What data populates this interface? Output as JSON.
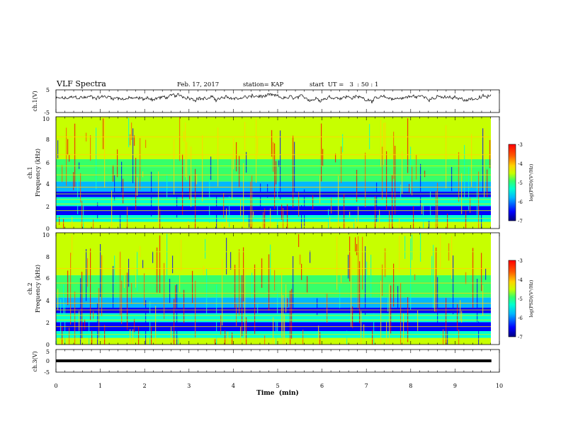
{
  "header": {
    "title": "VLF Spectra",
    "date": "Feb. 17, 2017",
    "station": "station= KAP",
    "start": "start  UT =   3  : 50 : 1"
  },
  "colors": {
    "scale": [
      "#00007f",
      "#0000ff",
      "#00b7ff",
      "#00ffd0",
      "#36ff6a",
      "#c7ff00",
      "#ffd400",
      "#ff5a00",
      "#ff0000"
    ]
  },
  "chart_data": [
    {
      "type": "line",
      "panel": "top",
      "ylabel": "ch.1(V)",
      "ylim": [
        -5,
        5
      ],
      "yticks": [
        "5",
        "-5"
      ],
      "xlim": [
        0,
        10
      ],
      "baseline_value": 1.5,
      "amplitude": 1.2
    },
    {
      "type": "heatmap",
      "panel": "ch1",
      "ylabel": "ch.1\nFrequency  (kHz)",
      "ylim": [
        0,
        10
      ],
      "yticks": [
        "10",
        "8",
        "6",
        "4",
        "2",
        "0"
      ],
      "xlim": [
        0,
        10
      ],
      "colorbar": {
        "label": "log(PSD)(V²/Hz)",
        "range": [
          -7,
          -3
        ],
        "ticks": [
          "-3",
          "-4",
          "-5",
          "-6",
          "-7"
        ]
      },
      "horizontal_lines_khz": [
        0.5,
        0.9,
        1.6,
        2.2,
        2.6,
        3.1,
        3.7,
        4.8,
        5.6,
        6.6,
        8.2
      ]
    },
    {
      "type": "heatmap",
      "panel": "ch2",
      "ylabel": "ch.2\nFrequency  (kHz)",
      "ylim": [
        0,
        10
      ],
      "yticks": [
        "10",
        "8",
        "6",
        "4",
        "2",
        "0"
      ],
      "xlim": [
        0,
        10
      ],
      "colorbar": {
        "label": "log(PSD)(V²/Hz)",
        "range": [
          -7,
          -3
        ],
        "ticks": [
          "-3",
          "-4",
          "-5",
          "-6",
          "-7"
        ]
      },
      "horizontal_lines_khz": [
        0.5,
        0.9,
        1.6,
        2.2,
        2.6,
        3.1,
        3.7,
        4.6,
        5.5,
        6.8,
        8.3
      ]
    },
    {
      "type": "line",
      "panel": "bottom",
      "ylabel": "ch.3(V)",
      "ylim": [
        -5,
        5
      ],
      "yticks": [
        "5",
        "0",
        "-5"
      ],
      "xlim": [
        0,
        9.82
      ],
      "constant_value": 0
    }
  ],
  "xaxis": {
    "label": "Time  (min)",
    "ticks": [
      "0",
      "1",
      "2",
      "3",
      "4",
      "5",
      "6",
      "7",
      "8",
      "9",
      "10"
    ]
  }
}
